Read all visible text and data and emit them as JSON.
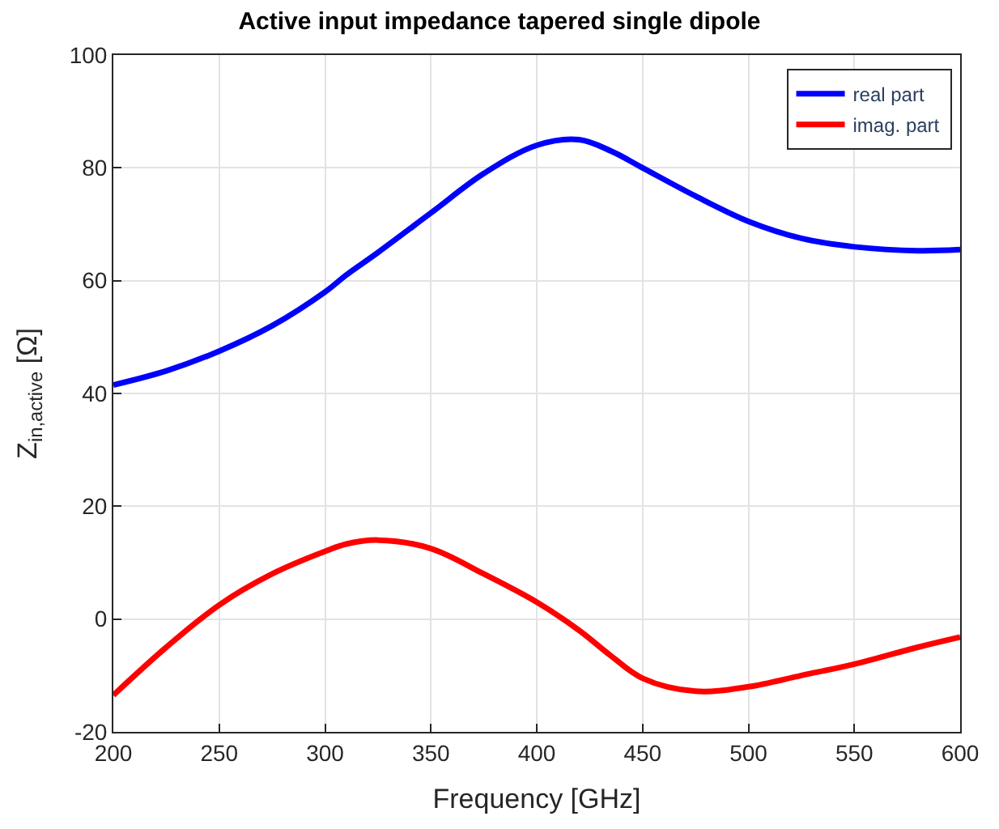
{
  "chart_data": {
    "type": "line",
    "title": "Active input impedance tapered single dipole",
    "xlabel": "Frequency [GHz]",
    "ylabel": "Z$_{in,active}$ [Ω]",
    "x": [
      200,
      225,
      250,
      275,
      300,
      310,
      325,
      350,
      375,
      400,
      420,
      435,
      450,
      475,
      500,
      525,
      550,
      580,
      600
    ],
    "series": [
      {
        "name": "real part",
        "color": "#0000ff",
        "values": [
          41.5,
          44,
          47.5,
          52,
          58,
          61,
          65,
          72,
          79,
          84,
          85,
          83,
          80,
          75,
          70.5,
          67.5,
          66,
          65.3,
          65.5
        ]
      },
      {
        "name": "imag. part",
        "color": "#ff0000",
        "values": [
          -13.5,
          -5,
          2.5,
          8,
          12,
          13.3,
          14,
          12.5,
          8,
          3,
          -2,
          -6.5,
          -10.5,
          -12.8,
          -12,
          -10,
          -8,
          -5,
          -3.2
        ]
      }
    ],
    "xlim": [
      200,
      600
    ],
    "ylim": [
      -20,
      100
    ],
    "xticks": [
      200,
      250,
      300,
      350,
      400,
      450,
      500,
      550,
      600
    ],
    "yticks": [
      -20,
      0,
      20,
      40,
      60,
      80,
      100
    ],
    "grid": true,
    "legend": "top right",
    "marker": "none",
    "line_style": "solid"
  }
}
